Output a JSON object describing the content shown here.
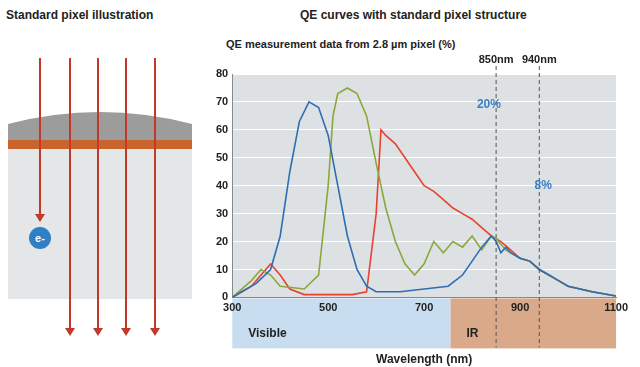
{
  "illustration": {
    "title": "Standard pixel illustration",
    "electron_label": "e-"
  },
  "chart_data": {
    "type": "line",
    "title": "QE curves with standard pixel structure",
    "y_label": "QE measurement data from 2.8 µm pixel (%)",
    "x_label": "Wavelength (nm)",
    "xlim": [
      300,
      1100
    ],
    "xticks": [
      300,
      500,
      700,
      900,
      1100
    ],
    "ylim": [
      0,
      80
    ],
    "yticks": [
      0,
      10,
      20,
      30,
      40,
      50,
      60,
      70,
      80
    ],
    "grid": true,
    "series": [
      {
        "color": "#2f6db5",
        "x": [
          300,
          350,
          380,
          400,
          420,
          440,
          460,
          480,
          500,
          520,
          540,
          560,
          580,
          600,
          650,
          700,
          750,
          780,
          800,
          820,
          840,
          850,
          860,
          870,
          880,
          900,
          920,
          940,
          960,
          980,
          1000,
          1050,
          1100
        ],
        "values": [
          0,
          5,
          10,
          22,
          45,
          63,
          70,
          68,
          58,
          40,
          22,
          10,
          4,
          2,
          2,
          3,
          4,
          8,
          13,
          18,
          22,
          20,
          16,
          18,
          16,
          14,
          13,
          10,
          8,
          6,
          4,
          2,
          0.5
        ]
      },
      {
        "color": "#8aa83a",
        "x": [
          300,
          340,
          360,
          380,
          400,
          450,
          480,
          500,
          510,
          520,
          540,
          560,
          580,
          600,
          620,
          640,
          660,
          680,
          700,
          720,
          740,
          760,
          780,
          800,
          820,
          840,
          850,
          870,
          900,
          920,
          940,
          960,
          980,
          1000,
          1050,
          1100
        ],
        "values": [
          0,
          6,
          10,
          8,
          4,
          3,
          8,
          40,
          65,
          73,
          75,
          73,
          65,
          48,
          32,
          20,
          12,
          8,
          12,
          20,
          16,
          20,
          18,
          22,
          17,
          22,
          21,
          17,
          14,
          13,
          10,
          8,
          6,
          4,
          2,
          0.5
        ]
      },
      {
        "color": "#e8422f",
        "x": [
          300,
          340,
          360,
          380,
          400,
          420,
          450,
          500,
          550,
          580,
          600,
          610,
          620,
          640,
          660,
          680,
          700,
          720,
          740,
          760,
          780,
          800,
          820,
          840,
          860,
          880,
          900,
          920,
          940,
          960,
          980,
          1000,
          1050,
          1100
        ],
        "values": [
          0,
          4,
          8,
          12,
          8,
          3,
          1,
          1,
          1,
          2,
          30,
          60,
          58,
          55,
          50,
          45,
          40,
          38,
          35,
          32,
          30,
          28,
          25,
          22,
          20,
          17,
          14,
          13,
          10,
          8,
          6,
          4,
          2,
          0.5
        ]
      }
    ],
    "bands": [
      {
        "label": "Visible",
        "range": [
          300,
          755
        ],
        "color": "#c8def0"
      },
      {
        "label": "IR",
        "range": [
          755,
          1100
        ],
        "color": "#d9a98a"
      }
    ],
    "reference_lines": [
      {
        "x": 850,
        "label": "850nm"
      },
      {
        "x": 940,
        "label": "940nm"
      }
    ],
    "annotations": [
      {
        "text": "20%",
        "x": 835,
        "y": 69
      },
      {
        "text": "8%",
        "x": 948,
        "y": 40
      }
    ]
  }
}
